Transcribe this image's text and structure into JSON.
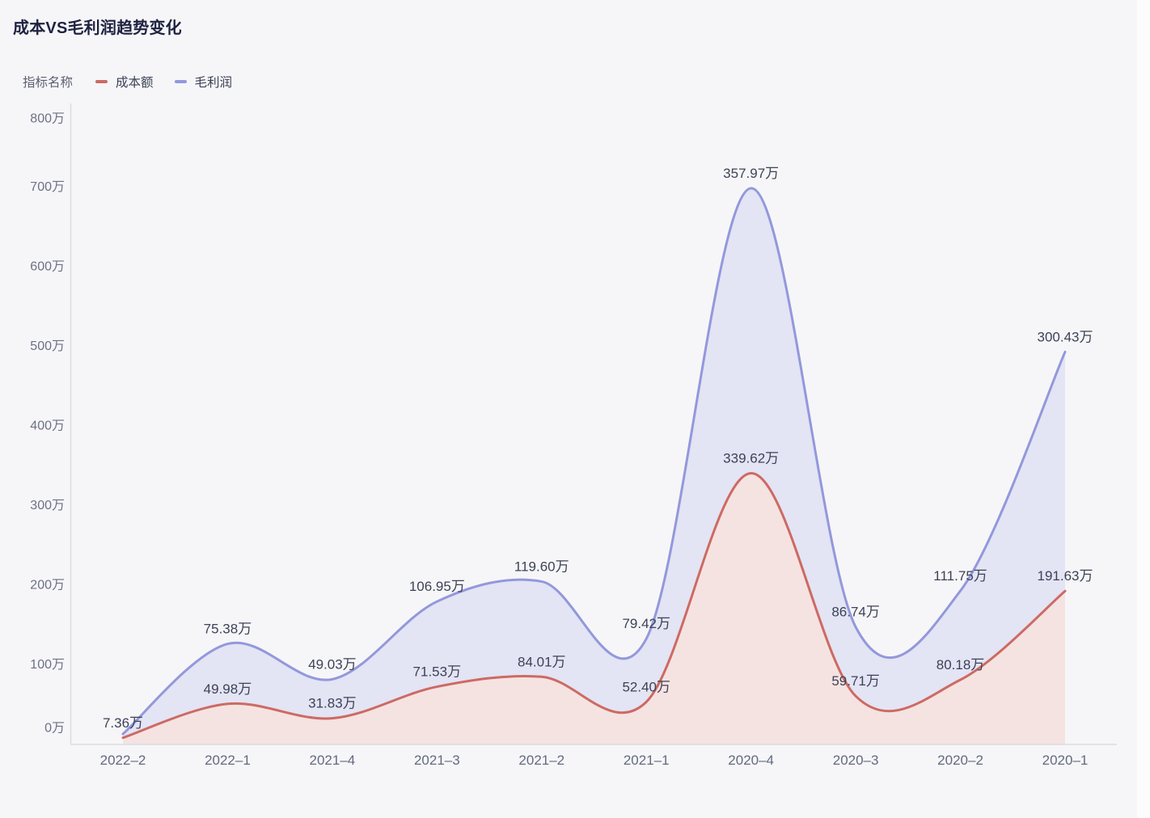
{
  "header": {
    "title": "成本VS毛利润趋势变化"
  },
  "legend": {
    "caption": "指标名称",
    "items": [
      {
        "name": "成本额",
        "color": "#cd6a63"
      },
      {
        "name": "毛利润",
        "color": "#9398db"
      }
    ]
  },
  "chart_data": {
    "type": "area",
    "stacked": true,
    "smooth": true,
    "title": "成本VS毛利润趋势变化",
    "xlabel": "",
    "ylabel": "",
    "unit": "万",
    "ylim": [
      0,
      800
    ],
    "grid": false,
    "legend_position": "top-left",
    "categories": [
      "2022–2",
      "2022–1",
      "2021–4",
      "2021–3",
      "2021–2",
      "2021–1",
      "2020–4",
      "2020–3",
      "2020–2",
      "2020–1"
    ],
    "y_ticks": [
      {
        "value": 0,
        "label": "0万"
      },
      {
        "value": 100,
        "label": "100万"
      },
      {
        "value": 200,
        "label": "200万"
      },
      {
        "value": 300,
        "label": "300万"
      },
      {
        "value": 400,
        "label": "400万"
      },
      {
        "value": 500,
        "label": "500万"
      },
      {
        "value": 600,
        "label": "600万"
      },
      {
        "value": 700,
        "label": "700万"
      },
      {
        "value": 800,
        "label": "800万"
      }
    ],
    "series": [
      {
        "name": "成本额",
        "line_color": "#cd6a63",
        "fill_color": "#f5e3e1",
        "values": [
          7.36,
          49.98,
          31.83,
          71.53,
          84.01,
          52.4,
          339.62,
          59.71,
          80.18,
          191.63
        ],
        "labels": [
          "7.36万",
          "49.98万",
          "31.83万",
          "71.53万",
          "84.01万",
          "52.40万",
          "339.62万",
          "59.71万",
          "80.18万",
          "191.63万"
        ]
      },
      {
        "name": "毛利润",
        "line_color": "#9398db",
        "fill_color": "#e3e4f4",
        "values": [
          4.8,
          75.38,
          49.03,
          106.95,
          119.6,
          79.42,
          357.97,
          86.74,
          111.75,
          300.43
        ],
        "labels": [
          "",
          "75.38万",
          "49.03万",
          "106.95万",
          "119.60万",
          "79.42万",
          "357.97万",
          "86.74万",
          "111.75万",
          "300.43万"
        ]
      }
    ]
  },
  "colors": {
    "background": "#f6f6f8",
    "axis_line": "#dadce4",
    "tick_text": "#6d7186",
    "label_text": "#3d4257",
    "title_text": "#1e2240"
  }
}
